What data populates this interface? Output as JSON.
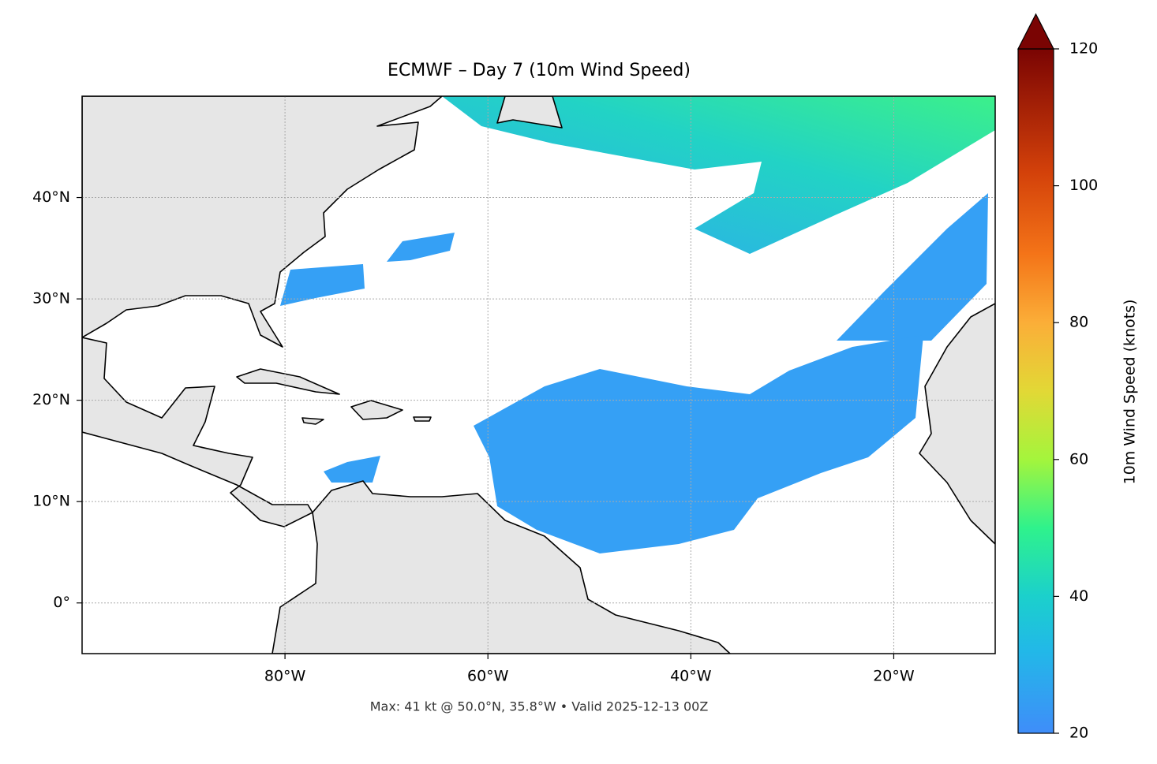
{
  "chart_data": {
    "type": "map",
    "title": "ECMWF – Day 7 (10m Wind Speed)",
    "note": "Max: 41 kt @ 50.0°N, 35.8°W • Valid 2025-12-13 00Z",
    "xlim": [
      -100,
      -10
    ],
    "ylim": [
      -5,
      50
    ],
    "xticks": [
      {
        "value": -80,
        "label": "80°W"
      },
      {
        "value": -60,
        "label": "60°W"
      },
      {
        "value": -40,
        "label": "40°W"
      },
      {
        "value": -20,
        "label": "20°W"
      }
    ],
    "yticks": [
      {
        "value": 0,
        "label": "0°"
      },
      {
        "value": 10,
        "label": "10°N"
      },
      {
        "value": 20,
        "label": "20°N"
      },
      {
        "value": 30,
        "label": "30°N"
      },
      {
        "value": 40,
        "label": "40°N"
      }
    ],
    "grid": true,
    "colorbar": {
      "label": "10m Wind Speed (knots)",
      "lim": [
        20,
        120
      ],
      "ticks": [
        20,
        40,
        60,
        80,
        100,
        120
      ],
      "extend": "max"
    }
  }
}
